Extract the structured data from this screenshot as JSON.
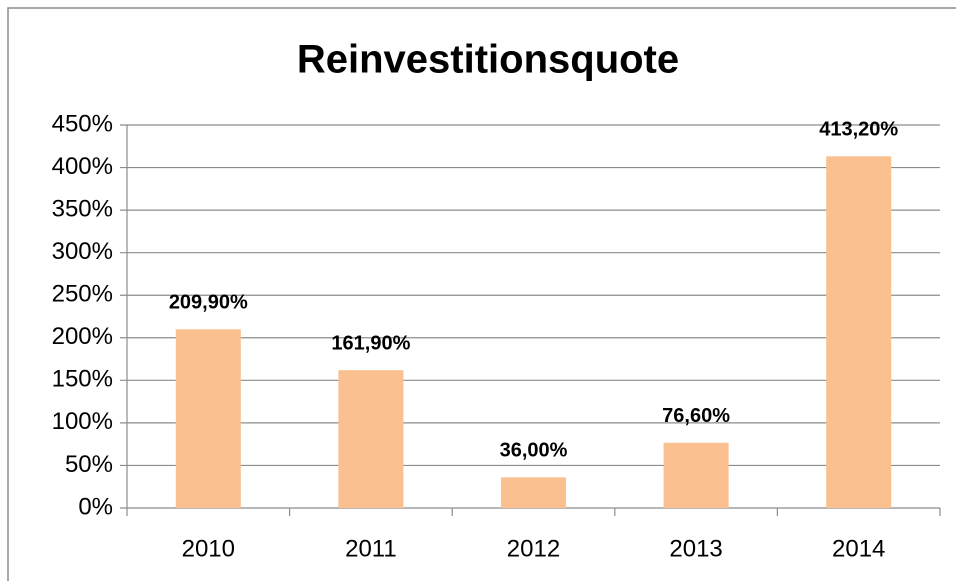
{
  "chart_data": {
    "type": "bar",
    "title": "Reinvestitionsquote",
    "categories": [
      "2010",
      "2011",
      "2012",
      "2013",
      "2014"
    ],
    "values": [
      209.9,
      161.9,
      36.0,
      76.6,
      413.2
    ],
    "value_labels": [
      "209,90%",
      "161,90%",
      "36,00%",
      "76,60%",
      "413,20%"
    ],
    "color": "#fac090",
    "ylim": [
      0,
      450
    ],
    "yticks": [
      {
        "value": 0,
        "label": "0%"
      },
      {
        "value": 50,
        "label": "50%"
      },
      {
        "value": 100,
        "label": "100%"
      },
      {
        "value": 150,
        "label": "150%"
      },
      {
        "value": 200,
        "label": "200%"
      },
      {
        "value": 250,
        "label": "250%"
      },
      {
        "value": 300,
        "label": "300%"
      },
      {
        "value": 350,
        "label": "350%"
      },
      {
        "value": 400,
        "label": "400%"
      },
      {
        "value": 450,
        "label": "450%"
      }
    ],
    "grid": true
  }
}
